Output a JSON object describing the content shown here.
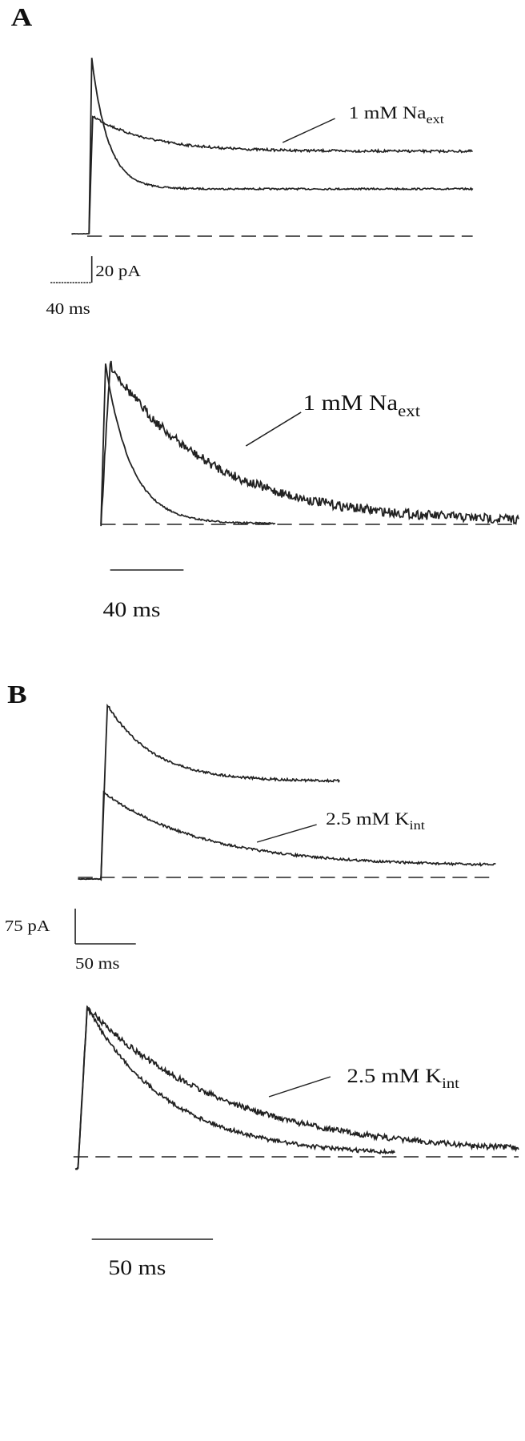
{
  "panels": [
    {
      "label": "A",
      "upper": {
        "annotation": {
          "text": "1 mM Na",
          "subscript": "ext"
        },
        "current_scale": "20 pA",
        "time_scale": "40 ms"
      },
      "lower": {
        "annotation": {
          "text": "1 mM Na",
          "subscript": "ext"
        },
        "time_scale": "40 ms"
      }
    },
    {
      "label": "B",
      "upper": {
        "annotation": {
          "text": "2.5 mM K",
          "subscript": "int"
        },
        "current_scale": "75 pA",
        "time_scale": "50 ms"
      },
      "lower": {
        "annotation": {
          "text": "2.5 mM K",
          "subscript": "int"
        },
        "time_scale": "50 ms"
      }
    }
  ]
}
